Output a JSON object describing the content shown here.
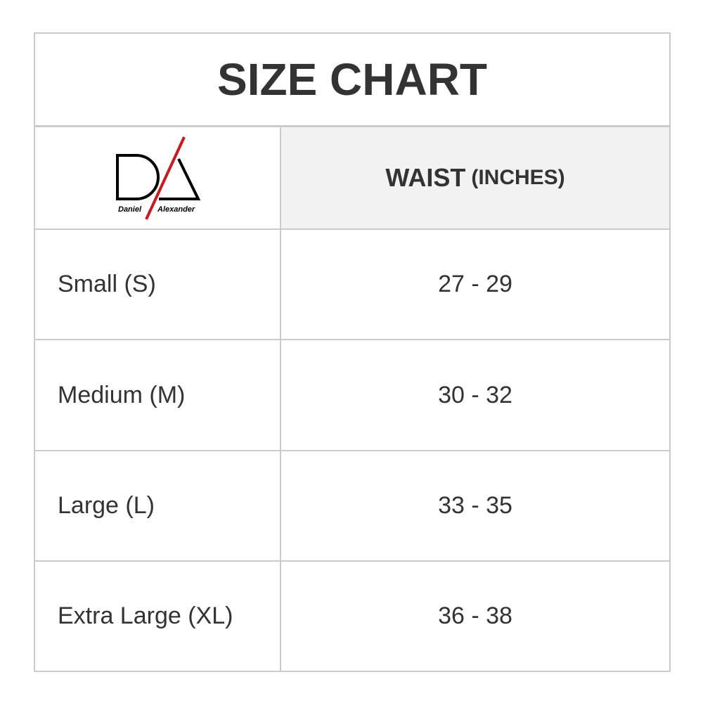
{
  "title": "SIZE CHART",
  "logo": {
    "text_left": "Daniel",
    "text_right": "Alexander",
    "accent_color": "#c8191e"
  },
  "header": {
    "column_main": "WAIST",
    "column_unit": "(INCHES)"
  },
  "rows": [
    {
      "size": "Small (S)",
      "waist": "27 - 29"
    },
    {
      "size": "Medium (M)",
      "waist": "30 - 32"
    },
    {
      "size": "Large (L)",
      "waist": "33 - 35"
    },
    {
      "size": "Extra Large (XL)",
      "waist": "36 - 38"
    }
  ]
}
